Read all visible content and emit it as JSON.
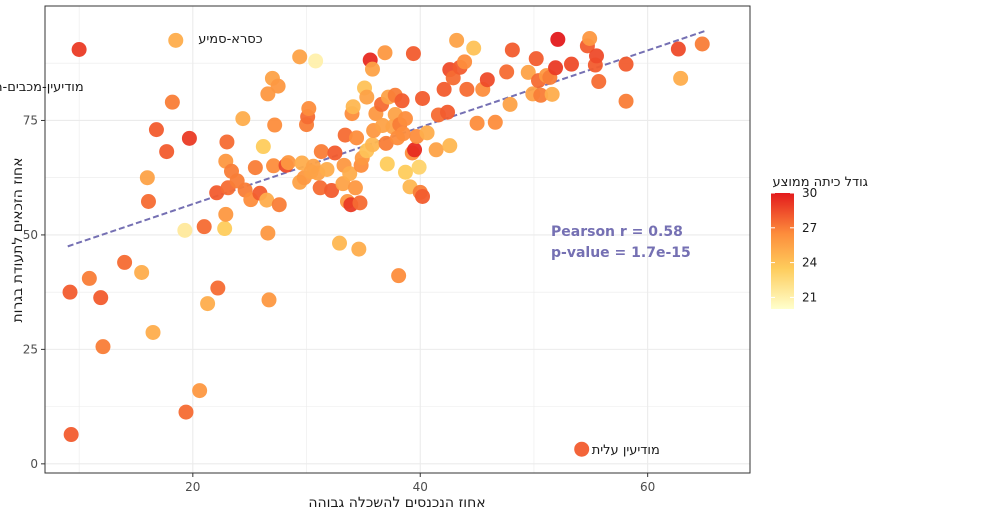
{
  "chart_data": {
    "type": "scatter",
    "title": "",
    "xlabel": "אחוז הנכנסים להשכלה גבוהה",
    "ylabel": "אחוז הזכאים לתעודת בגרות",
    "xlim": [
      7,
      69
    ],
    "ylim": [
      -2,
      100
    ],
    "x_ticks": [
      20,
      40,
      60
    ],
    "y_ticks": [
      0,
      25,
      50,
      75
    ],
    "grid": true,
    "colors": {
      "color_low": "#ffffcc",
      "color_mid": "#fd8d3c",
      "color_high": "#e31a1c",
      "trend_line": "#7570b3",
      "grid": "#ebebeb",
      "panel_border": "#333333"
    },
    "color_scale": {
      "title": "גודל כיתה ממוצע",
      "min": 20,
      "max": 30,
      "ticks": [
        21,
        24,
        27,
        30
      ]
    },
    "trend": {
      "x": [
        9,
        65
      ],
      "y": [
        47.5,
        94.5
      ]
    },
    "stats": {
      "pearson": "Pearson r = 0.58",
      "pvalue": "p-value = 1.7e-15"
    },
    "annotations": [
      {
        "text": "כסרא-סמיע",
        "x": 19.6,
        "y": 93,
        "anchor": "start"
      },
      {
        "text": "מודיעין-מכבים-רעות",
        "x": 10.4,
        "y": 82.5,
        "anchor": "end"
      },
      {
        "text": "מודיעין עלית",
        "x": 54.2,
        "y": 3.2,
        "anchor": "start"
      }
    ],
    "points": [
      [
        10,
        90.5,
        29
      ],
      [
        18.5,
        92.5,
        25
      ],
      [
        30.8,
        88,
        21
      ],
      [
        9.2,
        37.5,
        28
      ],
      [
        9.3,
        6.4,
        28
      ],
      [
        10.9,
        40.5,
        27
      ],
      [
        11.9,
        36.3,
        28
      ],
      [
        12.1,
        25.6,
        27
      ],
      [
        14,
        44,
        27.5
      ],
      [
        15.5,
        41.8,
        25
      ],
      [
        16,
        62.5,
        25.5
      ],
      [
        16.1,
        57.3,
        27.5
      ],
      [
        16.5,
        28.7,
        25
      ],
      [
        16.8,
        73,
        28
      ],
      [
        17.7,
        68.2,
        28
      ],
      [
        18.2,
        79,
        27
      ],
      [
        19.3,
        51,
        21.5
      ],
      [
        19.4,
        11.3,
        27.5
      ],
      [
        19.7,
        71.1,
        29
      ],
      [
        20.6,
        16,
        26
      ],
      [
        21,
        51.8,
        27.5
      ],
      [
        21.3,
        35,
        25
      ],
      [
        22.1,
        59.2,
        28
      ],
      [
        22.2,
        38.4,
        27.5
      ],
      [
        22.8,
        51.4,
        23.5
      ],
      [
        22.9,
        54.5,
        26
      ],
      [
        22.9,
        66.1,
        26
      ],
      [
        23.1,
        60.3,
        27.5
      ],
      [
        23,
        70.3,
        27.5
      ],
      [
        23.4,
        63.9,
        27
      ],
      [
        23.9,
        61.8,
        27
      ],
      [
        24.4,
        75.4,
        25
      ],
      [
        24.6,
        59.8,
        27
      ],
      [
        25.1,
        57.7,
        26.5
      ],
      [
        25.5,
        64.7,
        27
      ],
      [
        25.9,
        59.1,
        28
      ],
      [
        26.2,
        69.3,
        23.5
      ],
      [
        26.5,
        57.6,
        25
      ],
      [
        26.6,
        80.8,
        26
      ],
      [
        26.6,
        50.4,
        26
      ],
      [
        26.7,
        35.8,
        26
      ],
      [
        27,
        84.2,
        25.5
      ],
      [
        27.1,
        65.1,
        26.5
      ],
      [
        27.2,
        74,
        26.5
      ],
      [
        27.5,
        82.5,
        26
      ],
      [
        27.6,
        56.6,
        27
      ],
      [
        28.2,
        65.2,
        28.5
      ],
      [
        28.4,
        65.8,
        26
      ],
      [
        29.4,
        61.5,
        25.5
      ],
      [
        29.4,
        88.9,
        25.5
      ],
      [
        29.6,
        65.7,
        25
      ],
      [
        29.8,
        62.5,
        26
      ],
      [
        30,
        74.1,
        27
      ],
      [
        30.1,
        75.8,
        27.5
      ],
      [
        30.2,
        77.6,
        26.5
      ],
      [
        30.4,
        63.8,
        25.5
      ],
      [
        30.6,
        65,
        25.5
      ],
      [
        31,
        63.5,
        25.5
      ],
      [
        31.2,
        60.3,
        27.5
      ],
      [
        31.3,
        68.2,
        27
      ],
      [
        31.8,
        64.3,
        25
      ],
      [
        32.2,
        59.7,
        28
      ],
      [
        32.5,
        67.9,
        28
      ],
      [
        32.9,
        48.2,
        24.5
      ],
      [
        33.2,
        61.2,
        25.5
      ],
      [
        33.3,
        65.2,
        26
      ],
      [
        33.4,
        71.8,
        27.5
      ],
      [
        33.6,
        57.3,
        26
      ],
      [
        33.8,
        63.4,
        25
      ],
      [
        33.9,
        56.6,
        29
      ],
      [
        34,
        76.5,
        26.5
      ],
      [
        34.1,
        78,
        24.5
      ],
      [
        34.3,
        60.3,
        26
      ],
      [
        34.4,
        71.2,
        26.5
      ],
      [
        34.6,
        46.9,
        25
      ],
      [
        34.7,
        57,
        27.5
      ],
      [
        34.8,
        65.2,
        26.5
      ],
      [
        34.9,
        66.8,
        26
      ],
      [
        35.1,
        82.1,
        24
      ],
      [
        35.3,
        80.1,
        25.5
      ],
      [
        35.3,
        68.4,
        24
      ],
      [
        35.6,
        88.2,
        29.5
      ],
      [
        35.8,
        86.2,
        25.5
      ],
      [
        35.8,
        69.7,
        24.5
      ],
      [
        35.9,
        72.8,
        26
      ],
      [
        36.1,
        76.5,
        26
      ],
      [
        36.6,
        78.5,
        27.5
      ],
      [
        36.7,
        73.9,
        25.5
      ],
      [
        36.9,
        89.8,
        26
      ],
      [
        37,
        70,
        27
      ],
      [
        37.1,
        65.5,
        23.5
      ],
      [
        37.2,
        80.1,
        25.5
      ],
      [
        37.6,
        73.6,
        25.5
      ],
      [
        37.8,
        76.3,
        25.5
      ],
      [
        37.8,
        80.5,
        27
      ],
      [
        38,
        71.2,
        26.5
      ],
      [
        38.1,
        41.1,
        26.5
      ],
      [
        38.2,
        74.1,
        27
      ],
      [
        38.4,
        79.3,
        28
      ],
      [
        38.5,
        72.1,
        26.5
      ],
      [
        38.7,
        63.7,
        23.5
      ],
      [
        38.7,
        75.4,
        26.5
      ],
      [
        39.1,
        60.5,
        24.5
      ],
      [
        39.3,
        67.9,
        26.5
      ],
      [
        39.4,
        89.6,
        28
      ],
      [
        39.5,
        68.6,
        29.5
      ],
      [
        39.7,
        71.5,
        26.5
      ],
      [
        39.9,
        64.8,
        23
      ],
      [
        40,
        59.3,
        27
      ],
      [
        40.2,
        58.4,
        28
      ],
      [
        40.2,
        79.8,
        28
      ],
      [
        40.6,
        72.3,
        25
      ],
      [
        41.4,
        68.6,
        25.5
      ],
      [
        41.6,
        76.2,
        27.5
      ],
      [
        42.1,
        81.8,
        28
      ],
      [
        42.4,
        76.8,
        28
      ],
      [
        42.6,
        69.5,
        24.5
      ],
      [
        42.6,
        86.1,
        28.5
      ],
      [
        42.9,
        84.3,
        27.5
      ],
      [
        43.2,
        92.5,
        25.5
      ],
      [
        43.5,
        86.6,
        28
      ],
      [
        43.9,
        87.8,
        26.5
      ],
      [
        44.1,
        81.8,
        27.5
      ],
      [
        44.7,
        90.8,
        24
      ],
      [
        45,
        74.4,
        26.5
      ],
      [
        45.5,
        81.8,
        26.5
      ],
      [
        45.9,
        83.9,
        28.5
      ],
      [
        46.6,
        74.6,
        26.5
      ],
      [
        47.6,
        85.6,
        27.5
      ],
      [
        47.9,
        78.5,
        25.5
      ],
      [
        48.1,
        90.4,
        28
      ],
      [
        49.5,
        85.5,
        25.5
      ],
      [
        49.9,
        80.8,
        25.5
      ],
      [
        50.2,
        88.5,
        28
      ],
      [
        50.4,
        83.7,
        27.5
      ],
      [
        50.6,
        80.5,
        27
      ],
      [
        51.1,
        84.8,
        26
      ],
      [
        51.4,
        84.4,
        27
      ],
      [
        51.6,
        80.7,
        25
      ],
      [
        51.9,
        86.5,
        29
      ],
      [
        52.1,
        92.7,
        30
      ],
      [
        53.3,
        87.3,
        28.5
      ],
      [
        54.7,
        91.3,
        28
      ],
      [
        54.9,
        92.9,
        26
      ],
      [
        55.4,
        87.1,
        28
      ],
      [
        55.5,
        89.1,
        28.5
      ],
      [
        55.7,
        83.5,
        27.5
      ],
      [
        58.1,
        87.3,
        28
      ],
      [
        58.1,
        79.2,
        27
      ],
      [
        62.7,
        90.6,
        28.5
      ],
      [
        62.9,
        84.2,
        25
      ],
      [
        64.8,
        91.7,
        27
      ],
      [
        54.2,
        3.2,
        28
      ]
    ]
  }
}
